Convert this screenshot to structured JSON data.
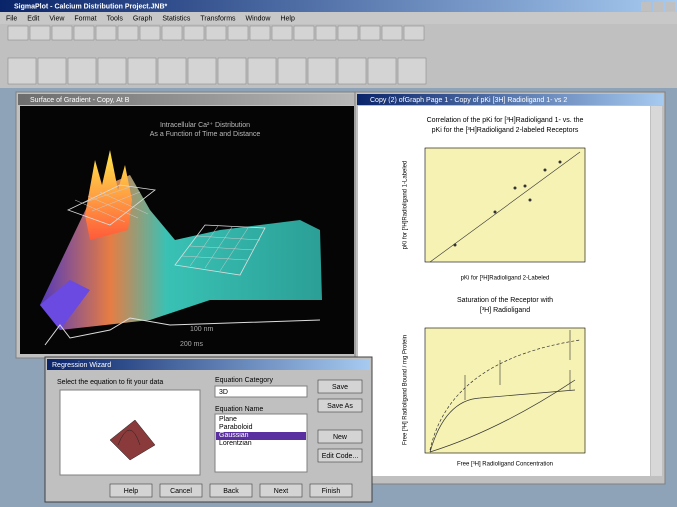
{
  "app": {
    "title": "SigmaPlot - Calcium Distribution Project.JNB*",
    "menu": [
      "File",
      "Edit",
      "View",
      "Format",
      "Tools",
      "Graph",
      "Statistics",
      "Transforms",
      "Window",
      "Help"
    ]
  },
  "left_window": {
    "title": "Surface of Gradient - Copy, At B",
    "graph_title": [
      "Intracellular Ca²⁺ Distribution",
      "As a Function of Time and Distance"
    ],
    "labels": [
      "100 nm",
      "200 ms"
    ]
  },
  "right_window": {
    "title": "Copy (2) ofGraph Page 1 - Copy of pKi [3H] Radioligand 1- vs 2",
    "chart1": {
      "title": [
        "Correlation of the pKi for [³H]Radioligand 1- vs. the",
        "pKi for the [³H]Radioligand 2-labeled Receptors"
      ],
      "y_label": "pKi for [³H]Radioligand 1-Labeled",
      "x_label": "pKi for [³H]Radioligand 2-Labeled"
    },
    "chart2": {
      "title": [
        "Saturation of the Receptor with",
        "[³H] Radioligand"
      ],
      "y_label": "Free [³H] Radioligand Bound / mg Protein",
      "x_label": "Free [³H] Radioligand Concentration"
    }
  },
  "dialog": {
    "title": "Regression Wizard",
    "prompt": "Select the equation to fit your data",
    "category_label": "Equation Category",
    "category": "3D",
    "name_label": "Equation Name",
    "names": [
      "Plane",
      "Paraboloid",
      "Gaussian",
      "Lorentzian"
    ],
    "side_buttons": [
      "Save",
      "Save As",
      "New",
      "Edit Code..."
    ],
    "bottom_buttons": [
      "Help",
      "Cancel",
      "Back",
      "Next",
      "Finish"
    ]
  }
}
